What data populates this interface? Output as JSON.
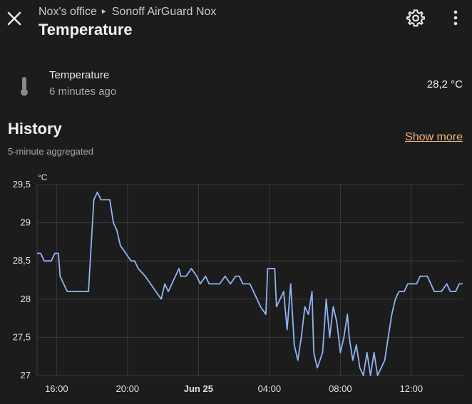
{
  "header": {
    "breadcrumb_area": "Nox's office",
    "breadcrumb_device": "Sonoff AirGuard Nox",
    "title": "Temperature",
    "icons": {
      "close": "close-icon",
      "settings": "gear-icon",
      "more": "more-vertical-icon"
    }
  },
  "entity": {
    "name": "Temperature",
    "last_changed": "6 minutes ago",
    "state": "28,2 °C",
    "icon": "thermometer-icon"
  },
  "history": {
    "title": "History",
    "subtitle": "5-minute aggregated",
    "show_more": "Show more"
  },
  "colors": {
    "accent": "#f0b47c",
    "line": "#8fb4f5",
    "background": "#1c1c1c",
    "grid": "#3a3a3a"
  },
  "chart_data": {
    "type": "line",
    "unit_label": "°C",
    "y_ticks": [
      "29,5",
      "29",
      "28,5",
      "28",
      "27,5",
      "27"
    ],
    "ylim": [
      27,
      29.5
    ],
    "x_ticks": [
      {
        "label": "16:00",
        "bold": false
      },
      {
        "label": "20:00",
        "bold": false
      },
      {
        "label": "Jun 25",
        "bold": true
      },
      {
        "label": "04:00",
        "bold": false
      },
      {
        "label": "08:00",
        "bold": false
      },
      {
        "label": "12:00",
        "bold": false
      }
    ],
    "x_tick_hours": [
      16,
      20,
      24,
      28,
      32,
      36
    ],
    "xlim": [
      14.9,
      38.9
    ],
    "grid": true,
    "series": [
      {
        "points": [
          [
            14.9,
            28.6
          ],
          [
            15.1,
            28.6
          ],
          [
            15.3,
            28.5
          ],
          [
            15.7,
            28.5
          ],
          [
            15.9,
            28.6
          ],
          [
            16.1,
            28.6
          ],
          [
            16.2,
            28.3
          ],
          [
            16.4,
            28.2
          ],
          [
            16.6,
            28.1
          ],
          [
            17.8,
            28.1
          ],
          [
            18.1,
            29.3
          ],
          [
            18.3,
            29.4
          ],
          [
            18.5,
            29.3
          ],
          [
            19.0,
            29.3
          ],
          [
            19.2,
            29.0
          ],
          [
            19.4,
            28.9
          ],
          [
            19.6,
            28.7
          ],
          [
            19.9,
            28.6
          ],
          [
            20.2,
            28.5
          ],
          [
            20.4,
            28.5
          ],
          [
            20.6,
            28.4
          ],
          [
            21.0,
            28.3
          ],
          [
            21.3,
            28.2
          ],
          [
            21.6,
            28.1
          ],
          [
            21.9,
            28.0
          ],
          [
            22.1,
            28.2
          ],
          [
            22.3,
            28.1
          ],
          [
            22.5,
            28.2
          ],
          [
            22.7,
            28.3
          ],
          [
            22.9,
            28.4
          ],
          [
            23.0,
            28.3
          ],
          [
            23.3,
            28.3
          ],
          [
            23.6,
            28.4
          ],
          [
            23.9,
            28.3
          ],
          [
            24.1,
            28.2
          ],
          [
            24.4,
            28.3
          ],
          [
            24.6,
            28.2
          ],
          [
            25.2,
            28.2
          ],
          [
            25.5,
            28.3
          ],
          [
            25.8,
            28.2
          ],
          [
            26.1,
            28.3
          ],
          [
            26.3,
            28.3
          ],
          [
            26.5,
            28.2
          ],
          [
            26.9,
            28.2
          ],
          [
            27.1,
            28.1
          ],
          [
            27.3,
            28.0
          ],
          [
            27.5,
            27.9
          ],
          [
            27.8,
            27.8
          ],
          [
            27.9,
            28.4
          ],
          [
            28.3,
            28.4
          ],
          [
            28.4,
            27.9
          ],
          [
            28.6,
            28.0
          ],
          [
            28.8,
            28.1
          ],
          [
            29.0,
            27.6
          ],
          [
            29.2,
            28.2
          ],
          [
            29.4,
            27.4
          ],
          [
            29.6,
            27.2
          ],
          [
            29.8,
            27.5
          ],
          [
            30.0,
            27.9
          ],
          [
            30.2,
            27.8
          ],
          [
            30.4,
            28.1
          ],
          [
            30.5,
            27.3
          ],
          [
            30.7,
            27.1
          ],
          [
            31.0,
            27.3
          ],
          [
            31.2,
            28.0
          ],
          [
            31.4,
            27.5
          ],
          [
            31.6,
            27.9
          ],
          [
            31.8,
            27.7
          ],
          [
            32.0,
            27.3
          ],
          [
            32.2,
            27.5
          ],
          [
            32.4,
            27.8
          ],
          [
            32.5,
            27.5
          ],
          [
            32.7,
            27.2
          ],
          [
            32.9,
            27.4
          ],
          [
            33.1,
            27.1
          ],
          [
            33.3,
            27.0
          ],
          [
            33.5,
            27.3
          ],
          [
            33.7,
            27.0
          ],
          [
            33.9,
            27.3
          ],
          [
            34.1,
            27.0
          ],
          [
            34.3,
            27.1
          ],
          [
            34.5,
            27.2
          ],
          [
            34.7,
            27.5
          ],
          [
            34.9,
            27.8
          ],
          [
            35.1,
            28.0
          ],
          [
            35.3,
            28.1
          ],
          [
            35.6,
            28.1
          ],
          [
            35.8,
            28.2
          ],
          [
            36.3,
            28.2
          ],
          [
            36.5,
            28.3
          ],
          [
            36.9,
            28.3
          ],
          [
            37.1,
            28.2
          ],
          [
            37.3,
            28.1
          ],
          [
            37.7,
            28.1
          ],
          [
            38.0,
            28.2
          ],
          [
            38.2,
            28.1
          ],
          [
            38.5,
            28.1
          ],
          [
            38.7,
            28.2
          ],
          [
            38.9,
            28.2
          ]
        ]
      }
    ]
  }
}
